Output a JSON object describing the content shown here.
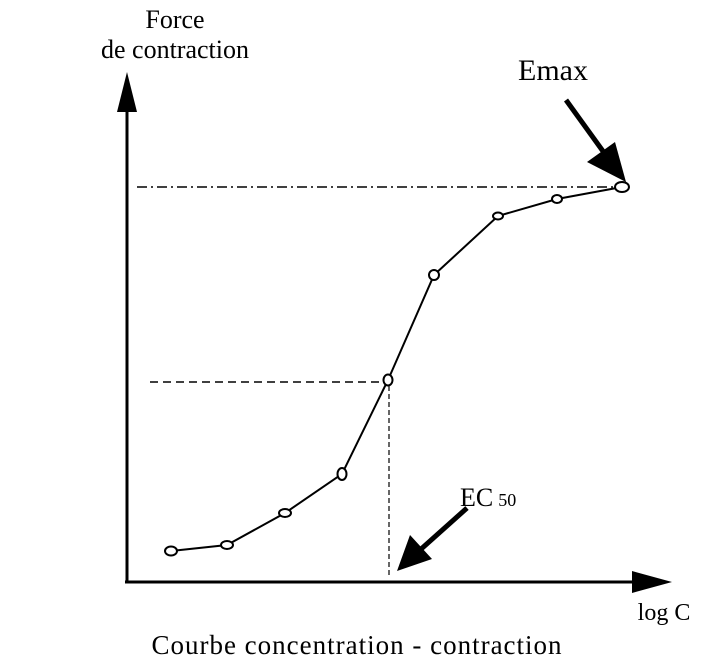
{
  "axes": {
    "y_label": [
      "Force",
      "de contraction"
    ],
    "x_label": "log C"
  },
  "annotations": {
    "emax": "Emax",
    "ec50": {
      "main": "EC",
      "sub": "50"
    }
  },
  "caption": "Courbe concentration - contraction"
}
